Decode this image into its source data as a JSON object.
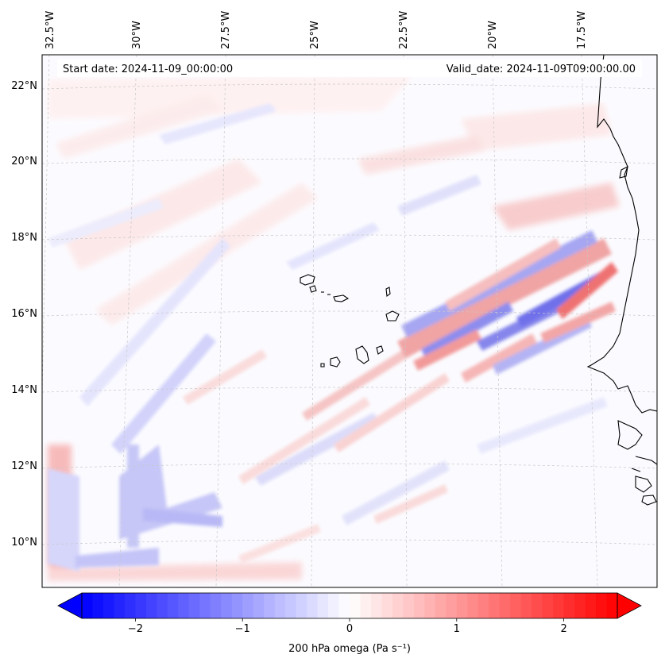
{
  "map": {
    "start_date": "Start date: 2024-11-09_00:00:00",
    "valid_date": "Valid_date: 2024-11-09T09:00:00.00",
    "lon_labels": [
      "32.5°W",
      "30°W",
      "27.5°W",
      "25°W",
      "22.5°W",
      "20°W",
      "17.5°W"
    ],
    "lat_labels": [
      "22°N",
      "20°N",
      "18°N",
      "16°N",
      "14°N",
      "12°N",
      "10°N"
    ],
    "coastline_color": "#000000",
    "gridline_color": "#c8c8c8"
  },
  "colorbar": {
    "label": "200 hPa omega (Pa s⁻¹)",
    "ticks": [
      "−2",
      "−1",
      "0",
      "1",
      "2"
    ],
    "tick_values": [
      -2,
      -1,
      0,
      1,
      2
    ],
    "range": [
      -2.5,
      2.5
    ],
    "colors": {
      "min": "#0000ff",
      "mid": "#ffffff",
      "max": "#ff0000"
    }
  }
}
